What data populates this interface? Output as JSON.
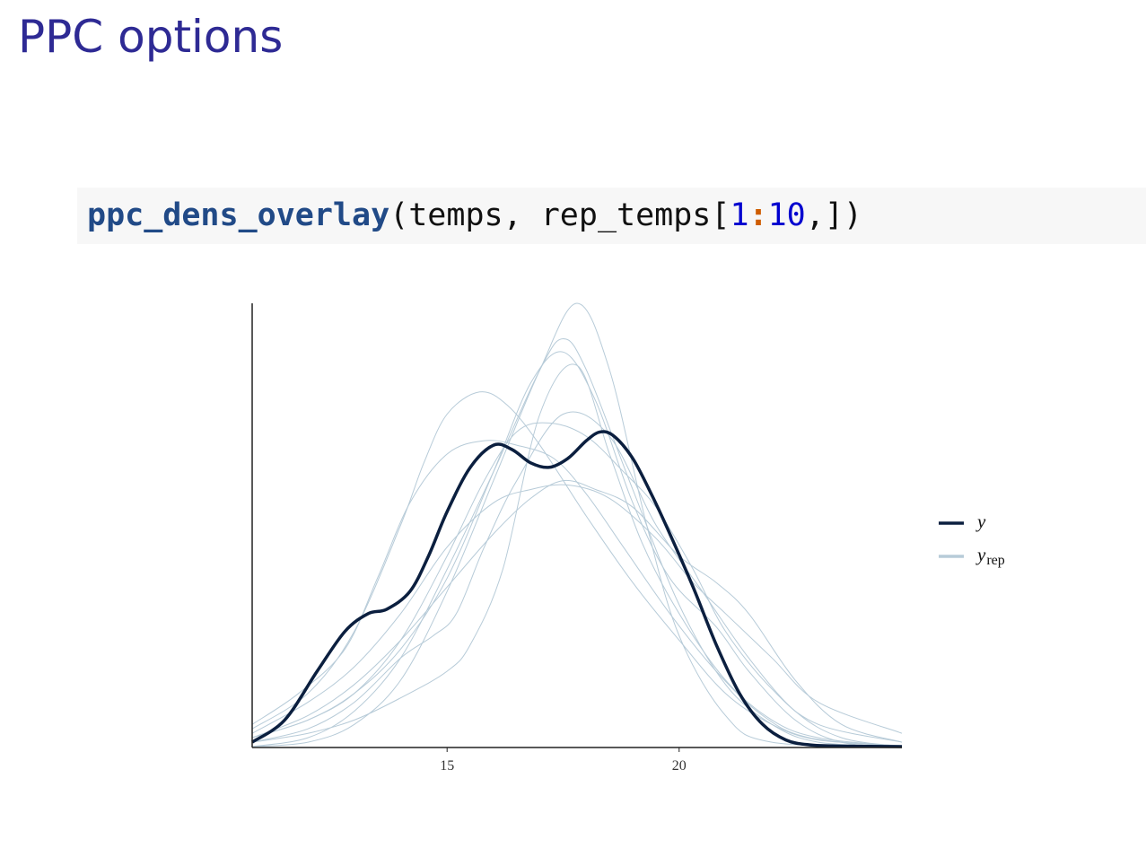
{
  "slide": {
    "title": "PPC options"
  },
  "code": {
    "fn": "ppc_dens_overlay",
    "open": "(temps, rep_temps[",
    "num1": "1",
    "op": ":",
    "num2": "10",
    "close": ",])"
  },
  "colors": {
    "title": "#2e2a94",
    "y": "#0b1f3f",
    "yrep": "#b7cbd8",
    "code_bg": "#f7f7f7"
  },
  "chart_data": {
    "type": "line",
    "xlim": [
      10.8,
      24.8
    ],
    "ylim": [
      0,
      1
    ],
    "x_ticks": [
      15,
      20
    ],
    "y_axis_labels": "none",
    "grid": false,
    "legend_position": "right",
    "legend": [
      {
        "key": "y",
        "label": "y",
        "sub": ""
      },
      {
        "key": "yrep",
        "label": "y",
        "sub": "rep"
      }
    ],
    "series": [
      {
        "name": "y",
        "x": [
          10.8,
          11.5,
          12.2,
          12.8,
          13.3,
          13.7,
          14.2,
          14.6,
          15.0,
          15.5,
          16.0,
          16.4,
          16.8,
          17.2,
          17.6,
          18.0,
          18.3,
          18.6,
          19.0,
          19.4,
          19.8,
          20.3,
          20.8,
          21.3,
          21.8,
          22.3,
          22.8,
          23.5,
          24.8
        ],
        "values": [
          0.01,
          0.06,
          0.17,
          0.26,
          0.3,
          0.31,
          0.35,
          0.43,
          0.53,
          0.63,
          0.68,
          0.67,
          0.64,
          0.63,
          0.65,
          0.69,
          0.71,
          0.7,
          0.65,
          0.57,
          0.48,
          0.36,
          0.23,
          0.12,
          0.05,
          0.015,
          0.004,
          0.001,
          0.0
        ]
      },
      {
        "name": "",
        "x": [
          10.8,
          12,
          13,
          14,
          14.5,
          15,
          15.7,
          16.3,
          17,
          18,
          19,
          20,
          21,
          22,
          23,
          24.8
        ],
        "values": [
          0.04,
          0.12,
          0.26,
          0.5,
          0.64,
          0.75,
          0.8,
          0.77,
          0.68,
          0.52,
          0.37,
          0.24,
          0.12,
          0.05,
          0.015,
          0.002
        ]
      },
      {
        "name": "",
        "x": [
          10.8,
          12,
          13,
          14,
          15,
          16,
          17,
          17.8,
          18.5,
          19.3,
          20,
          21,
          22,
          24.8
        ],
        "values": [
          0.0,
          0.01,
          0.05,
          0.15,
          0.35,
          0.6,
          0.85,
          1.0,
          0.85,
          0.5,
          0.25,
          0.07,
          0.01,
          0.0
        ]
      },
      {
        "name": "",
        "x": [
          10.8,
          12,
          13,
          14,
          15,
          16,
          17,
          17.5,
          18,
          19,
          20,
          21,
          22,
          23,
          24.8
        ],
        "values": [
          0.0,
          0.02,
          0.08,
          0.2,
          0.4,
          0.62,
          0.85,
          0.92,
          0.85,
          0.58,
          0.32,
          0.14,
          0.05,
          0.01,
          0.0
        ]
      },
      {
        "name": "",
        "x": [
          10.8,
          12,
          13,
          14,
          15,
          16,
          16.8,
          17.6,
          18.5,
          19.5,
          20.3,
          21,
          22,
          23,
          24.8
        ],
        "values": [
          0.03,
          0.1,
          0.18,
          0.3,
          0.45,
          0.55,
          0.58,
          0.59,
          0.56,
          0.47,
          0.37,
          0.3,
          0.2,
          0.1,
          0.03
        ]
      },
      {
        "name": "",
        "x": [
          10.8,
          12,
          13,
          14,
          15,
          15.8,
          16.5,
          17.2,
          18,
          18.8,
          19.5,
          20.3,
          21,
          22,
          23,
          24.8
        ],
        "values": [
          0.02,
          0.06,
          0.12,
          0.24,
          0.43,
          0.6,
          0.71,
          0.73,
          0.7,
          0.62,
          0.54,
          0.4,
          0.26,
          0.13,
          0.05,
          0.01
        ]
      },
      {
        "name": "",
        "x": [
          10.8,
          12,
          13,
          14,
          15,
          16,
          16.8,
          17.5,
          18.2,
          19,
          20,
          20.8,
          21.5,
          22.5,
          23.5,
          24.8
        ],
        "values": [
          0.02,
          0.07,
          0.14,
          0.24,
          0.36,
          0.48,
          0.56,
          0.6,
          0.58,
          0.54,
          0.43,
          0.37,
          0.3,
          0.15,
          0.05,
          0.01
        ]
      },
      {
        "name": "",
        "x": [
          10.8,
          12,
          13,
          14,
          14.7,
          15.2,
          15.8,
          16.5,
          17.5,
          18.5,
          19.5,
          20.5,
          21.5,
          22.5,
          23.5,
          24.8
        ],
        "values": [
          0.01,
          0.04,
          0.1,
          0.2,
          0.25,
          0.3,
          0.45,
          0.6,
          0.75,
          0.7,
          0.5,
          0.35,
          0.2,
          0.08,
          0.02,
          0.0
        ]
      },
      {
        "name": "",
        "x": [
          10.8,
          12,
          13,
          14,
          15,
          16,
          16.8,
          17.5,
          18.2,
          19,
          19.8,
          20.8,
          21.5,
          22.5,
          23.5,
          24.8
        ],
        "values": [
          0.02,
          0.06,
          0.12,
          0.22,
          0.38,
          0.62,
          0.82,
          0.89,
          0.78,
          0.55,
          0.38,
          0.27,
          0.17,
          0.06,
          0.01,
          0.0
        ]
      },
      {
        "name": "",
        "x": [
          10.8,
          12,
          13,
          14,
          15,
          15.5,
          16.2,
          17,
          17.8,
          18.5,
          19.2,
          20,
          21,
          22,
          23,
          24.8
        ],
        "values": [
          0.01,
          0.03,
          0.06,
          0.11,
          0.17,
          0.23,
          0.4,
          0.75,
          0.86,
          0.66,
          0.46,
          0.3,
          0.15,
          0.06,
          0.02,
          0.0
        ]
      },
      {
        "name": "",
        "x": [
          10.8,
          11.8,
          12.8,
          13.5,
          14.2,
          15,
          15.8,
          16.5,
          17.3,
          18,
          18.8,
          19.8,
          20.8,
          21.8,
          22.8,
          24.8
        ],
        "values": [
          0.05,
          0.12,
          0.22,
          0.38,
          0.55,
          0.66,
          0.69,
          0.68,
          0.65,
          0.57,
          0.45,
          0.3,
          0.17,
          0.07,
          0.02,
          0.0
        ]
      }
    ]
  }
}
